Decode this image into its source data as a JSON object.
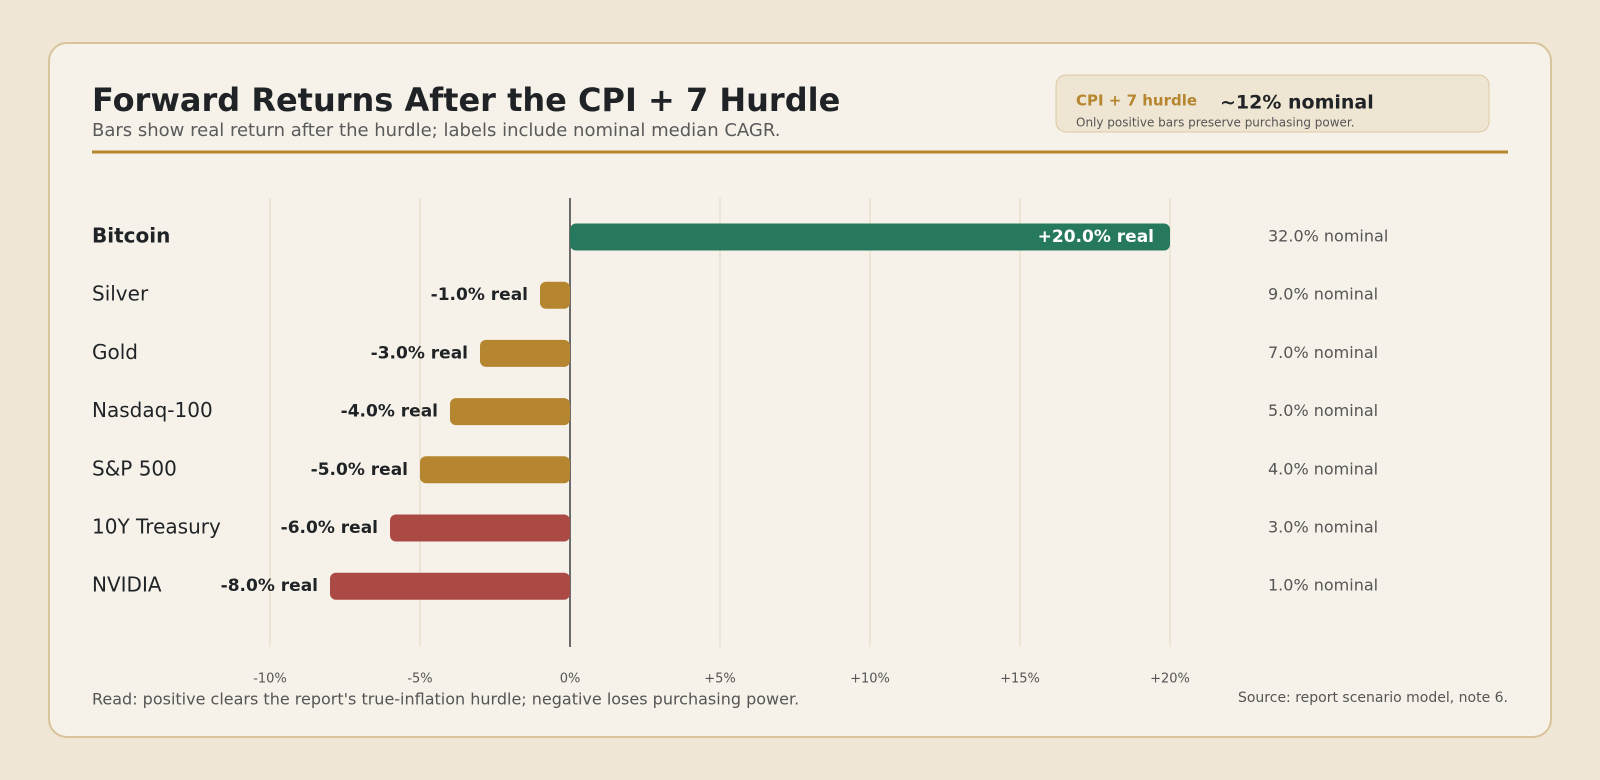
{
  "chart_data": {
    "type": "bar",
    "orientation": "horizontal",
    "title": "Forward Returns After the CPI + 7 Hurdle",
    "subtitle": "Bars show real return after the hurdle; labels include nominal median CAGR.",
    "callout": {
      "label": "CPI + 7 hurdle",
      "value": "~12% nominal",
      "note": "Only positive bars preserve purchasing power."
    },
    "categories": [
      "Bitcoin",
      "Silver",
      "Gold",
      "Nasdaq-100",
      "S&P 500",
      "10Y Treasury",
      "NVIDIA"
    ],
    "values": [
      20,
      -1,
      -3,
      -4,
      -5,
      -6,
      -8
    ],
    "value_labels": [
      "+20.0% real",
      "-1.0% real",
      "-3.0% real",
      "-4.0% real",
      "-5.0% real",
      "-6.0% real",
      "-8.0% real"
    ],
    "colors": [
      "#27795e",
      "#b5862f",
      "#b5862f",
      "#b5862f",
      "#b5862f",
      "#ab4a45",
      "#ab4a45"
    ],
    "nominal_labels": [
      "32.0% nominal",
      "9.0% nominal",
      "7.0% nominal",
      "5.0% nominal",
      "4.0% nominal",
      "3.0% nominal",
      "1.0% nominal"
    ],
    "xlim": [
      -10,
      20
    ],
    "xticks": [
      {
        "value": -10,
        "label": "-10%"
      },
      {
        "value": -5,
        "label": "-5%"
      },
      {
        "value": 0,
        "label": "0%"
      },
      {
        "value": 5,
        "label": "+5%"
      },
      {
        "value": 10,
        "label": "+10%"
      },
      {
        "value": 15,
        "label": "+15%"
      },
      {
        "value": 20,
        "label": "+20%"
      }
    ],
    "grid": true,
    "footnote": "Read: positive clears the report's true-inflation hurdle; negative loses purchasing power.",
    "source": "Source: report scenario model, note 6."
  }
}
